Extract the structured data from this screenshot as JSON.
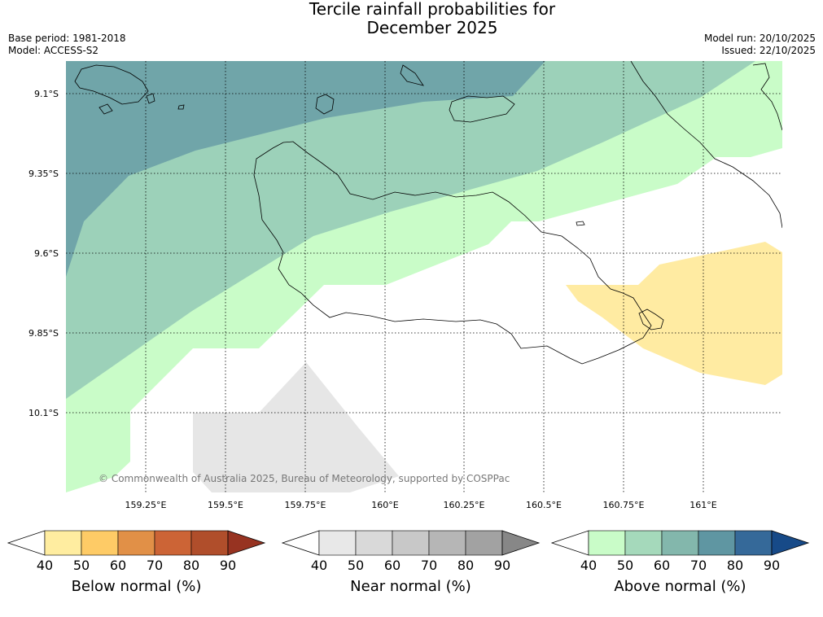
{
  "title": {
    "line1": "Tercile rainfall probabilities for",
    "line2": "December 2025"
  },
  "meta_left": {
    "base_period": "Base period: 1981-2018",
    "model": "Model: ACCESS-S2"
  },
  "meta_right": {
    "model_run": "Model run: 20/10/2025",
    "issued": "Issued: 22/10/2025"
  },
  "map": {
    "lat_labels": [
      "9.1°S",
      "9.35°S",
      "9.6°S",
      "9.85°S",
      "10.1°S"
    ],
    "lon_labels": [
      "159.25°E",
      "159.5°E",
      "159.75°E",
      "160°E",
      "160.25°E",
      "160.5°E",
      "160.75°E",
      "161°E"
    ],
    "copyright": "© Commonwealth of Australia 2025, Bureau of Meteorology, supported by COSPPac",
    "colors": {
      "above_50": "#c9fcc8",
      "above_60": "#9cd1b9",
      "above_70": "#70a5a9",
      "below_50": "#ffeba2",
      "near_50": "#e6e6e6",
      "background": "#ffffff"
    }
  },
  "colorbars": [
    {
      "name": "below",
      "title": "Below normal (%)",
      "ticks": [
        "40",
        "50",
        "60",
        "70",
        "80",
        "90"
      ],
      "colors": [
        "#ffeda0",
        "#fecb66",
        "#e19047",
        "#cc6436",
        "#b04e2b",
        "#973321"
      ]
    },
    {
      "name": "near",
      "title": "Near normal (%)",
      "ticks": [
        "40",
        "50",
        "60",
        "70",
        "80",
        "90"
      ],
      "colors": [
        "#e8e8e8",
        "#d9d9d9",
        "#c8c8c8",
        "#b6b6b6",
        "#a2a2a2",
        "#878787"
      ]
    },
    {
      "name": "above",
      "title": "Above normal (%)",
      "ticks": [
        "40",
        "50",
        "60",
        "70",
        "80",
        "90"
      ],
      "colors": [
        "#c9fcc8",
        "#a5d9bb",
        "#83b7ac",
        "#5f96a2",
        "#356999",
        "#174a88"
      ]
    }
  ]
}
